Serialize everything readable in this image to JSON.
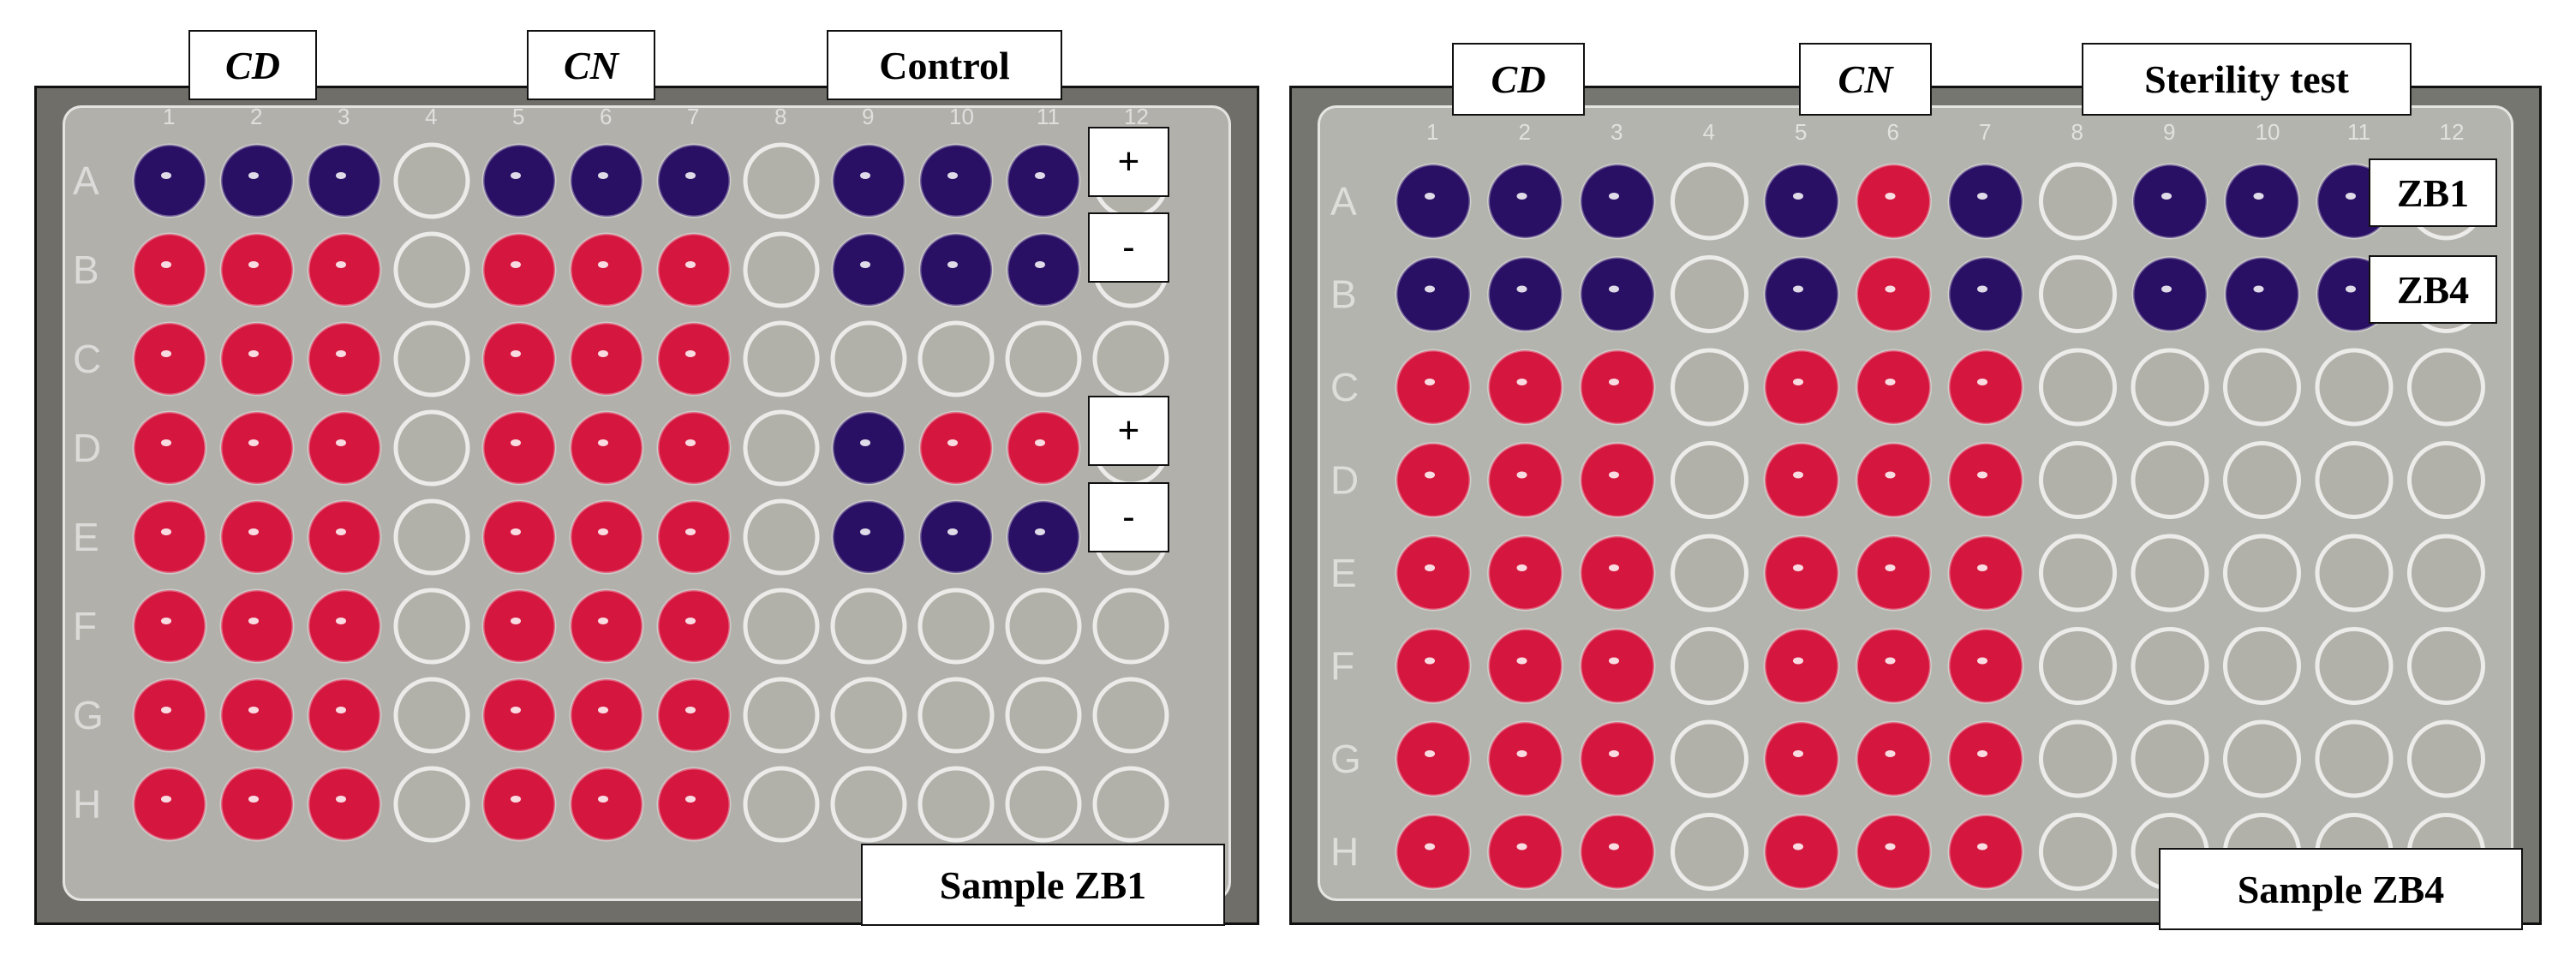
{
  "colors": {
    "purple": "#2a1064",
    "pink": "#d5163e",
    "empty": "#b2b1a9"
  },
  "left_panel": {
    "headers": {
      "cd": "CD",
      "cn": "CN",
      "control": "Control"
    },
    "signs": [
      "+",
      "-",
      "+",
      "-"
    ],
    "sample": "Sample ZB1",
    "wells": [
      "PPPEPPPEPPPE",
      "XXXEXXXEPPPE",
      "XXXEXXXEEEEE",
      "XXXEXXXEPXXE",
      "XXXEXXXEPPPE",
      "XXXEXXXEEEEE",
      "XXXEXXXEEEEE",
      "XXXEXXXEEEEE"
    ]
  },
  "right_panel": {
    "headers": {
      "cd": "CD",
      "cn": "CN",
      "sterility": "Sterility test"
    },
    "row_labels": [
      "ZB1",
      "ZB4"
    ],
    "sample": "Sample ZB4",
    "wells": [
      "PPPEPXPEPPPE",
      "PPPEPXPEPPPE",
      "XXXEXXXEEEEE",
      "XXXEXXXEEEEE",
      "XXXEXXXEEEEE",
      "XXXEXXXEEEEE",
      "XXXEXXXEEEEE",
      "XXXEXXXEEEEE"
    ]
  },
  "plate_rows": [
    "A",
    "B",
    "C",
    "D",
    "E",
    "F",
    "G",
    "H"
  ],
  "plate_cols": [
    "1",
    "2",
    "3",
    "4",
    "5",
    "6",
    "7",
    "8",
    "9",
    "10",
    "11",
    "12"
  ]
}
